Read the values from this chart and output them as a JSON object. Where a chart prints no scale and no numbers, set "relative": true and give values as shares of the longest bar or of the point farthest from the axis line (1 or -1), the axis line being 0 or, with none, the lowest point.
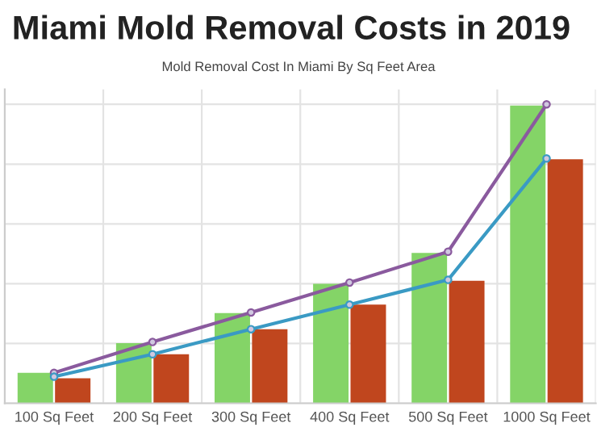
{
  "chart_data": {
    "type": "bar",
    "title": "Miami Mold Removal Costs in 2019",
    "subtitle": "Mold Removal Cost In Miami By Sq Feet Area",
    "relative": true,
    "grid": true,
    "legend": false,
    "marker": "circle",
    "categories": [
      "100 Sq Feet",
      "200 Sq Feet",
      "300 Sq Feet",
      "400 Sq Feet",
      "500 Sq Feet",
      "1000 Sq Feet"
    ],
    "series": [
      {
        "color": "#84d467",
        "values": [
          0.102,
          0.201,
          0.302,
          0.4,
          0.503,
          0.996
        ]
      },
      {
        "color": "#c0461e",
        "values": [
          0.084,
          0.164,
          0.248,
          0.33,
          0.41,
          0.816
        ]
      },
      {
        "type": "line",
        "color": "#8a5a9e",
        "values": [
          0.102,
          0.205,
          0.304,
          0.404,
          0.507,
          1
        ]
      },
      {
        "type": "line",
        "color": "#3a9ac4",
        "values": [
          0.089,
          0.164,
          0.248,
          0.33,
          0.413,
          0.819
        ]
      }
    ]
  }
}
